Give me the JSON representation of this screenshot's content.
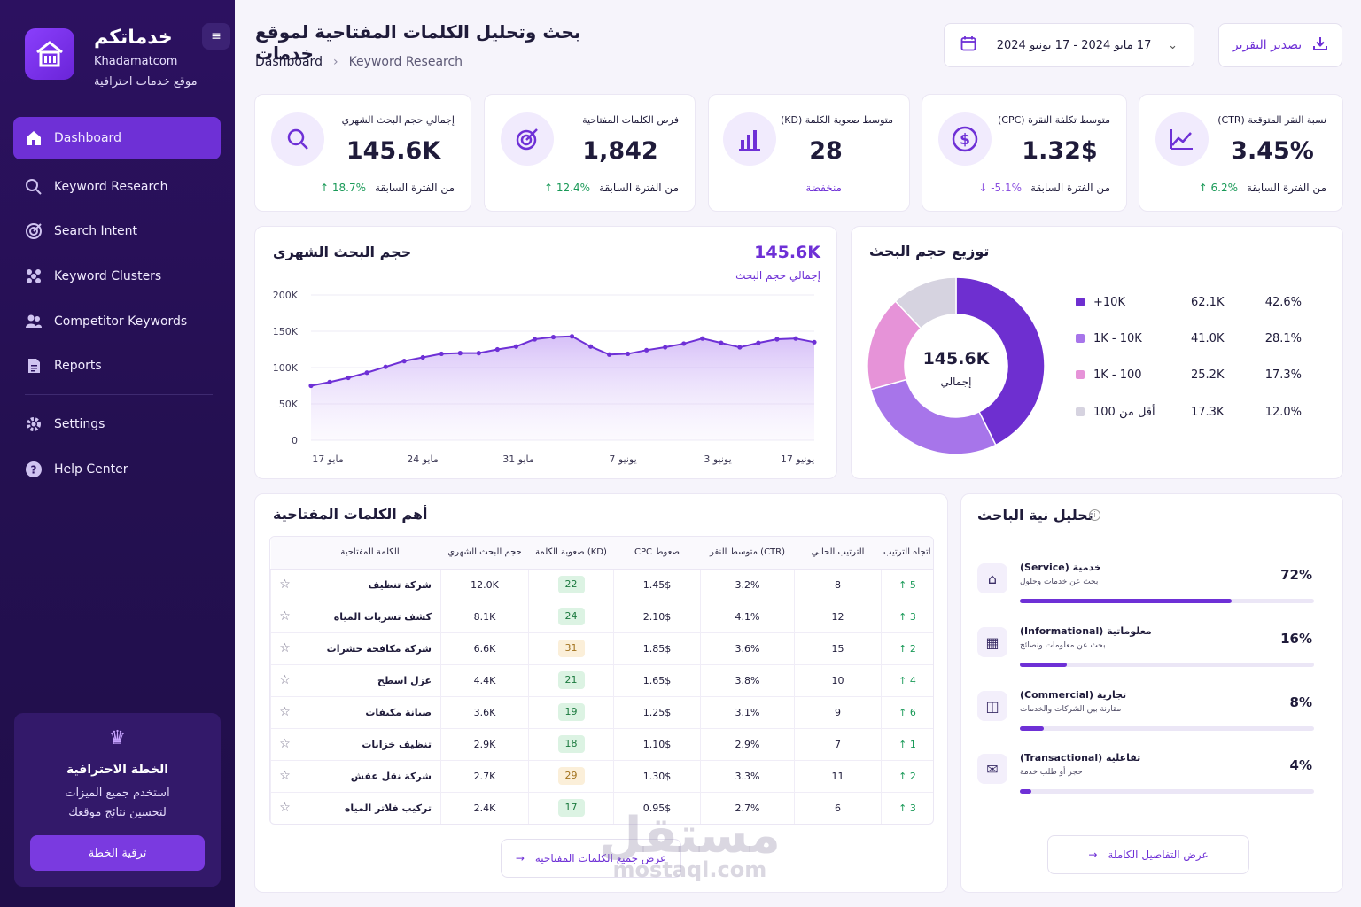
{
  "brand": {
    "name_ar": "خدماتكم",
    "name_en": "Khadamatcom",
    "tagline": "موقع خدمات احترافية"
  },
  "sidebar": {
    "items": [
      {
        "label": "Dashboard",
        "icon": "home-icon",
        "active": true
      },
      {
        "label": "Keyword Research",
        "icon": "search-icon"
      },
      {
        "label": "Search Intent",
        "icon": "target-icon"
      },
      {
        "label": "Keyword Clusters",
        "icon": "clusters-icon"
      },
      {
        "label": "Competitor Keywords",
        "icon": "users-icon"
      },
      {
        "label": "Reports",
        "icon": "report-icon"
      }
    ],
    "bottom_items": [
      {
        "label": "Settings",
        "icon": "gear-icon"
      },
      {
        "label": "Help Center",
        "icon": "help-icon"
      }
    ],
    "upgrade": {
      "title": "الخطة الاحترافية",
      "desc_line1": "استخدم جميع الميزات",
      "desc_line2": "لتحسين نتائج موقعك",
      "button": "ترقية الخطة"
    }
  },
  "header": {
    "title": "بحث وتحليل الكلمات المفتاحية لموقع خدمات",
    "breadcrumb": [
      "Dashboard",
      "Keyword Research"
    ],
    "date_range": "17 مايو 2024 - 17 يونيو 2024",
    "export_label": "تصدير التقرير"
  },
  "stats": [
    {
      "label": "إجمالي حجم البحث الشهري",
      "value": "145.6K",
      "foot_label": "من الفترة السابقة",
      "delta": "↑ 18.7%",
      "trend": "up"
    },
    {
      "label": "فرص الكلمات المفتاحية",
      "value": "1,842",
      "foot_label": "من الفترة السابقة",
      "delta": "↑ 12.4%",
      "trend": "up"
    },
    {
      "label": "متوسط صعوبة الكلمة (KD)",
      "value": "28",
      "foot_label": "منخفضة",
      "delta": "",
      "trend": "low"
    },
    {
      "label": "متوسط تكلفة النقرة (CPC)",
      "value": "1.32$",
      "foot_label": "من الفترة السابقة",
      "delta": "↓ -5.1%",
      "trend": "down"
    },
    {
      "label": "نسبة النقر المتوقعة (CTR)",
      "value": "3.45%",
      "foot_label": "من الفترة السابقة",
      "delta": "↑ 6.2%",
      "trend": "up"
    }
  ],
  "monthly_chart": {
    "title": "حجم البحث الشهري",
    "total": "145.6K",
    "total_label": "إجمالي حجم البحث"
  },
  "chart_data": {
    "type": "area",
    "title": "حجم البحث الشهري",
    "x_ticks": [
      "17 مايو",
      "24 مايو",
      "31 مايو",
      "7 يونيو",
      "3 يونيو",
      "17 يونيو"
    ],
    "y_ticks": [
      "0",
      "50K",
      "100K",
      "150K",
      "200K"
    ],
    "ylim": [
      0,
      200000
    ],
    "values": [
      75000,
      80000,
      86000,
      93000,
      101000,
      109000,
      114000,
      119000,
      120000,
      120000,
      125000,
      129000,
      139000,
      142000,
      143000,
      129000,
      118000,
      119000,
      124000,
      128000,
      133000,
      140000,
      134000,
      128000,
      134000,
      139000,
      140000,
      135000
    ],
    "grid": true,
    "color": "#6e30d6"
  },
  "distribution": {
    "title": "توزيع حجم البحث",
    "center_value": "145.6K",
    "center_label": "إجمالي",
    "rows": [
      {
        "name": "10K+",
        "value": "62.1K",
        "pct": "42.6%",
        "share": 42.6,
        "color": "#6e2fd0"
      },
      {
        "name": "1K - 10K",
        "value": "41.0K",
        "pct": "28.1%",
        "share": 28.1,
        "color": "#a775ea"
      },
      {
        "name": "100 - 1K",
        "value": "25.2K",
        "pct": "17.3%",
        "share": 17.3,
        "color": "#e693d8"
      },
      {
        "name": "أقل من 100",
        "value": "17.3K",
        "pct": "12.0%",
        "share": 12.0,
        "color": "#d6d3e0"
      }
    ]
  },
  "keywords": {
    "title": "أهم الكلمات المفتاحية",
    "columns": [
      "الكلمة المفتاحية",
      "حجم البحث الشهري",
      "صعوبة الكلمة (KD)",
      "CPC صعوط",
      "متوسط النقر (CTR)",
      "الترتيب الحالي",
      "اتجاه الترتيب"
    ],
    "rows": [
      {
        "kw": "شركة تنظيف",
        "vol": "12.0K",
        "kd": "22",
        "cpc": "1.45$",
        "ctr": "3.2%",
        "rank": "8",
        "trend": "↑ 5",
        "kd_level": "g"
      },
      {
        "kw": "كشف تسربات المياه",
        "vol": "8.1K",
        "kd": "24",
        "cpc": "2.10$",
        "ctr": "4.1%",
        "rank": "12",
        "trend": "↑ 3",
        "kd_level": "g"
      },
      {
        "kw": "شركة مكافحة حشرات",
        "vol": "6.6K",
        "kd": "31",
        "cpc": "1.85$",
        "ctr": "3.6%",
        "rank": "15",
        "trend": "↑ 2",
        "kd_level": "y"
      },
      {
        "kw": "عزل اسطح",
        "vol": "4.4K",
        "kd": "21",
        "cpc": "1.65$",
        "ctr": "3.8%",
        "rank": "10",
        "trend": "↑ 4",
        "kd_level": "g"
      },
      {
        "kw": "صيانة مكيفات",
        "vol": "3.6K",
        "kd": "19",
        "cpc": "1.25$",
        "ctr": "3.1%",
        "rank": "9",
        "trend": "↑ 6",
        "kd_level": "g"
      },
      {
        "kw": "تنظيف خزانات",
        "vol": "2.9K",
        "kd": "18",
        "cpc": "1.10$",
        "ctr": "2.9%",
        "rank": "7",
        "trend": "↑ 1",
        "kd_level": "g"
      },
      {
        "kw": "شركة نقل عفش",
        "vol": "2.7K",
        "kd": "29",
        "cpc": "1.30$",
        "ctr": "3.3%",
        "rank": "11",
        "trend": "↑ 2",
        "kd_level": "y"
      },
      {
        "kw": "تركيب فلاتر المياه",
        "vol": "2.4K",
        "kd": "17",
        "cpc": "0.95$",
        "ctr": "2.7%",
        "rank": "6",
        "trend": "↑ 3",
        "kd_level": "g"
      }
    ],
    "view_all": "عرض جميع الكلمات المفتاحية"
  },
  "intent": {
    "title": "تحليل نية الباحث",
    "rows": [
      {
        "title": "خدمية (Service)",
        "sub": "بحث عن خدمات وحلول",
        "pct": "72%",
        "share": 72,
        "icon": "service-icon"
      },
      {
        "title": "معلوماتية (Informational)",
        "sub": "بحث عن معلومات ونصائح",
        "pct": "16%",
        "share": 16,
        "icon": "info-building-icon"
      },
      {
        "title": "تجارية (Commercial)",
        "sub": "مقارنة بين الشركات والخدمات",
        "pct": "8%",
        "share": 8,
        "icon": "commercial-icon"
      },
      {
        "title": "تفاعلية (Transactional)",
        "sub": "حجز أو طلب خدمة",
        "pct": "4%",
        "share": 4,
        "icon": "transaction-icon"
      }
    ],
    "details": "عرض التفاصيل الكاملة"
  },
  "watermark": {
    "ar": "مستقل",
    "en": "mostaql.com"
  }
}
